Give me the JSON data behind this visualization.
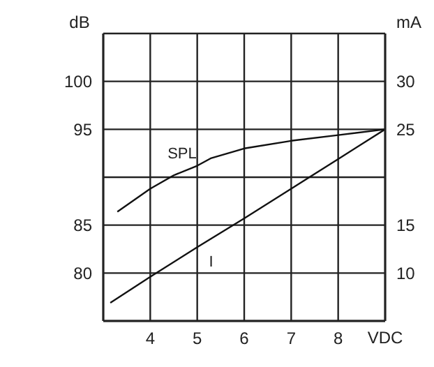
{
  "chart_data": {
    "type": "line",
    "xlabel": "VDC",
    "ylabel": "dB",
    "y2label": "mA",
    "xlim": [
      3,
      9
    ],
    "xticks": [
      4,
      5,
      6,
      7,
      8
    ],
    "ylim": [
      75,
      105
    ],
    "yticks": [
      80,
      85,
      {
        "value": 90,
        "label": null
      },
      95,
      100
    ],
    "y2lim": [
      5,
      35
    ],
    "y2ticks": [
      10,
      15,
      25,
      30
    ],
    "grid": true,
    "legend": false,
    "marker": "none",
    "line_style": "solid",
    "series": [
      {
        "color": "#111111",
        "axis": "y",
        "x": [
          3.3,
          4,
          4.5,
          5,
          5.3,
          6,
          7,
          8,
          9
        ],
        "values": [
          86.4,
          88.8,
          90.2,
          91.2,
          92,
          93,
          93.8,
          94.4,
          95
        ]
      },
      {
        "color": "#111111",
        "axis": "y2",
        "x": [
          3.15,
          4,
          5,
          6,
          7,
          8,
          9
        ],
        "values": [
          6.9,
          9.6,
          12.7,
          15.7,
          18.8,
          21.9,
          25
        ]
      }
    ],
    "annotations": [
      "SPL",
      "I"
    ]
  }
}
